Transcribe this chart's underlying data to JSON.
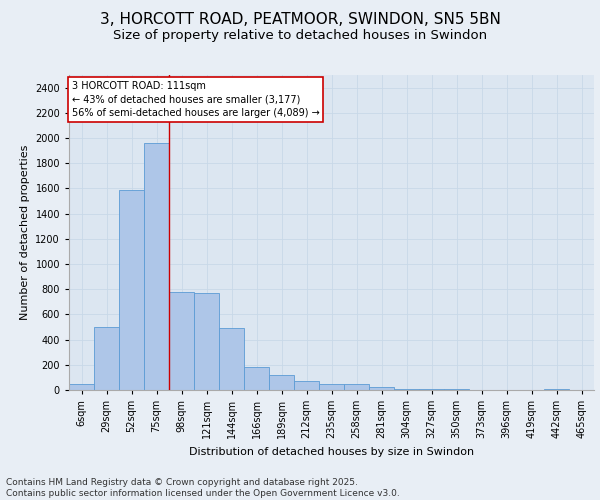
{
  "title_line1": "3, HORCOTT ROAD, PEATMOOR, SWINDON, SN5 5BN",
  "title_line2": "Size of property relative to detached houses in Swindon",
  "xlabel": "Distribution of detached houses by size in Swindon",
  "ylabel": "Number of detached properties",
  "footer": "Contains HM Land Registry data © Crown copyright and database right 2025.\nContains public sector information licensed under the Open Government Licence v3.0.",
  "categories": [
    "6sqm",
    "29sqm",
    "52sqm",
    "75sqm",
    "98sqm",
    "121sqm",
    "144sqm",
    "166sqm",
    "189sqm",
    "212sqm",
    "235sqm",
    "258sqm",
    "281sqm",
    "304sqm",
    "327sqm",
    "350sqm",
    "373sqm",
    "396sqm",
    "419sqm",
    "442sqm",
    "465sqm"
  ],
  "values": [
    50,
    500,
    1590,
    1960,
    780,
    770,
    490,
    185,
    120,
    70,
    50,
    50,
    20,
    10,
    10,
    10,
    0,
    0,
    0,
    10,
    0
  ],
  "bar_color": "#aec6e8",
  "bar_edge_color": "#5b9bd5",
  "grid_color": "#c8d8e8",
  "background_color": "#dce6f1",
  "fig_background_color": "#e8eef5",
  "annotation_text": "3 HORCOTT ROAD: 111sqm\n← 43% of detached houses are smaller (3,177)\n56% of semi-detached houses are larger (4,089) →",
  "annotation_box_color": "#ffffff",
  "annotation_border_color": "#cc0000",
  "property_line_x": 3.5,
  "ylim": [
    0,
    2500
  ],
  "yticks": [
    0,
    200,
    400,
    600,
    800,
    1000,
    1200,
    1400,
    1600,
    1800,
    2000,
    2200,
    2400
  ],
  "title_fontsize": 11,
  "subtitle_fontsize": 9.5,
  "axis_label_fontsize": 8,
  "tick_fontsize": 7,
  "annotation_fontsize": 7,
  "footer_fontsize": 6.5
}
